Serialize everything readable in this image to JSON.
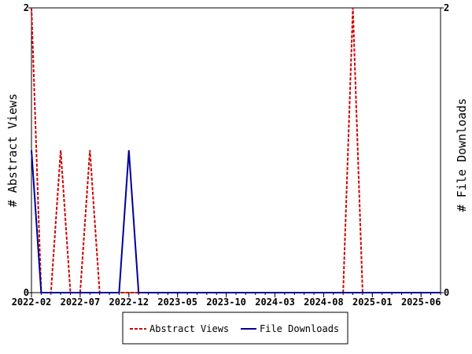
{
  "chart_data": {
    "type": "line",
    "x_ticks": [
      "2022-02",
      "2022-07",
      "2022-12",
      "2023-05",
      "2023-10",
      "2024-03",
      "2024-08",
      "2025-01",
      "2025-06"
    ],
    "y_left": {
      "label": "# Abstract Views",
      "ticks": [
        "0",
        "2"
      ],
      "ylim": [
        0,
        2
      ]
    },
    "y_right": {
      "label": "# File Downloads",
      "ticks": [
        "0",
        "2"
      ],
      "ylim": [
        0,
        2
      ]
    },
    "xlim": [
      "2022-02",
      "2025-08"
    ],
    "grid": false,
    "legend_position": "bottom",
    "series": [
      {
        "name": "Abstract Views",
        "color": "#cc0000",
        "style": "dashed",
        "axis": "left",
        "points": [
          [
            "2022-02",
            2
          ],
          [
            "2022-03",
            0
          ],
          [
            "2022-04",
            0
          ],
          [
            "2022-05",
            1
          ],
          [
            "2022-06",
            0
          ],
          [
            "2022-07",
            0
          ],
          [
            "2022-08",
            1
          ],
          [
            "2022-09",
            0
          ],
          [
            "2024-10",
            0
          ],
          [
            "2024-11",
            2
          ],
          [
            "2024-12",
            0
          ],
          [
            "2025-08",
            0
          ]
        ]
      },
      {
        "name": "File Downloads",
        "color": "#000099",
        "style": "solid",
        "axis": "right",
        "points": [
          [
            "2022-02",
            1
          ],
          [
            "2022-03",
            0
          ],
          [
            "2022-11",
            0
          ],
          [
            "2022-12",
            1
          ],
          [
            "2023-01",
            0
          ],
          [
            "2025-08",
            0
          ]
        ]
      }
    ]
  }
}
